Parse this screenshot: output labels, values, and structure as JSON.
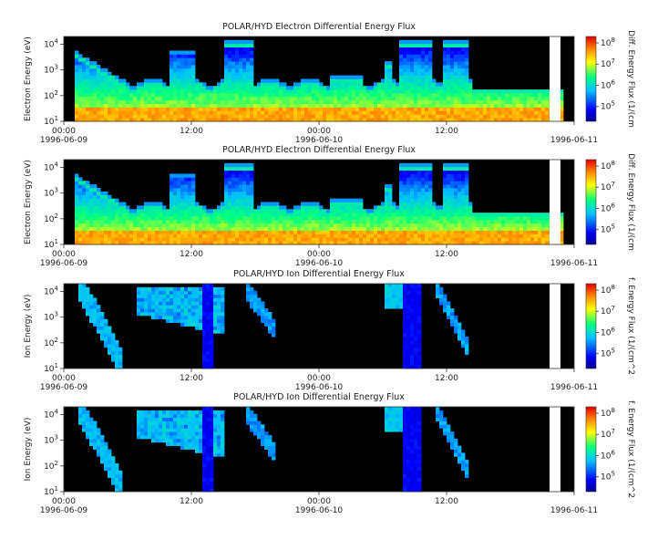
{
  "chart_data": {
    "type": "heatmap",
    "colors": {
      "background": "#000000",
      "colorbar": [
        "#00008f",
        "#0000ff",
        "#00c0ff",
        "#00ff80",
        "#ffff00",
        "#ff8000",
        "#e00000"
      ]
    },
    "x_axis": {
      "range": [
        "1996-06-09 00:00",
        "1996-06-11 00:00"
      ],
      "tick_labels": [
        "00:00",
        "12:00",
        "00:00",
        "12:00",
        ""
      ],
      "date_labels": [
        "1996-06-09",
        "",
        "1996-06-10",
        "",
        "1996-06-11"
      ]
    },
    "panels": [
      {
        "title": "POLAR/HYD  Electron Differential Energy Flux",
        "ylabel": "Electron Energy (eV)",
        "y_log": true,
        "ylim": [
          10,
          20000
        ],
        "y_ticks": [
          {
            "b": "10",
            "e": "1"
          },
          {
            "b": "10",
            "e": "2"
          },
          {
            "b": "10",
            "e": "3"
          },
          {
            "b": "10",
            "e": "4"
          }
        ],
        "colorbar_label": "Diff. Energy Flux (1/(cm",
        "colorbar_range": [
          20000,
          200000000
        ],
        "colorbar_ticks": [
          {
            "b": "10",
            "e": "5"
          },
          {
            "b": "10",
            "e": "6"
          },
          {
            "b": "10",
            "e": "7"
          },
          {
            "b": "10",
            "e": "8"
          }
        ],
        "kind": "electron",
        "seed": 11
      },
      {
        "title": "POLAR/HYD  Electron Differential Energy Flux",
        "ylabel": "Electron Energy (eV)",
        "y_log": true,
        "ylim": [
          10,
          20000
        ],
        "y_ticks": [
          {
            "b": "10",
            "e": "1"
          },
          {
            "b": "10",
            "e": "2"
          },
          {
            "b": "10",
            "e": "3"
          },
          {
            "b": "10",
            "e": "4"
          }
        ],
        "colorbar_label": "Diff. Energy Flux (1/(cm",
        "colorbar_range": [
          20000,
          200000000
        ],
        "colorbar_ticks": [
          {
            "b": "10",
            "e": "5"
          },
          {
            "b": "10",
            "e": "6"
          },
          {
            "b": "10",
            "e": "7"
          },
          {
            "b": "10",
            "e": "8"
          }
        ],
        "kind": "electron",
        "seed": 23
      },
      {
        "title": "POLAR/HYD  Ion Differential Energy Flux",
        "ylabel": "Ion Energy (eV)",
        "y_log": true,
        "ylim": [
          10,
          20000
        ],
        "y_ticks": [
          {
            "b": "10",
            "e": "1"
          },
          {
            "b": "10",
            "e": "2"
          },
          {
            "b": "10",
            "e": "3"
          },
          {
            "b": "10",
            "e": "4"
          }
        ],
        "colorbar_label": "f. Energy Flux (1/(cm^2",
        "colorbar_range": [
          20000,
          200000000
        ],
        "colorbar_ticks": [
          {
            "b": "10",
            "e": "5"
          },
          {
            "b": "10",
            "e": "6"
          },
          {
            "b": "10",
            "e": "7"
          },
          {
            "b": "10",
            "e": "8"
          }
        ],
        "kind": "ion",
        "seed": 37
      },
      {
        "title": "POLAR/HYD  Ion Differential Energy Flux",
        "ylabel": "Ion Energy (eV)",
        "y_log": true,
        "ylim": [
          10,
          20000
        ],
        "y_ticks": [
          {
            "b": "10",
            "e": "1"
          },
          {
            "b": "10",
            "e": "2"
          },
          {
            "b": "10",
            "e": "3"
          },
          {
            "b": "10",
            "e": "4"
          }
        ],
        "colorbar_label": "f. Energy Flux (1/(cm^2",
        "colorbar_range": [
          20000,
          200000000
        ],
        "colorbar_ticks": [
          {
            "b": "10",
            "e": "5"
          },
          {
            "b": "10",
            "e": "6"
          },
          {
            "b": "10",
            "e": "7"
          },
          {
            "b": "10",
            "e": "8"
          }
        ],
        "kind": "ion",
        "seed": 41
      }
    ]
  }
}
